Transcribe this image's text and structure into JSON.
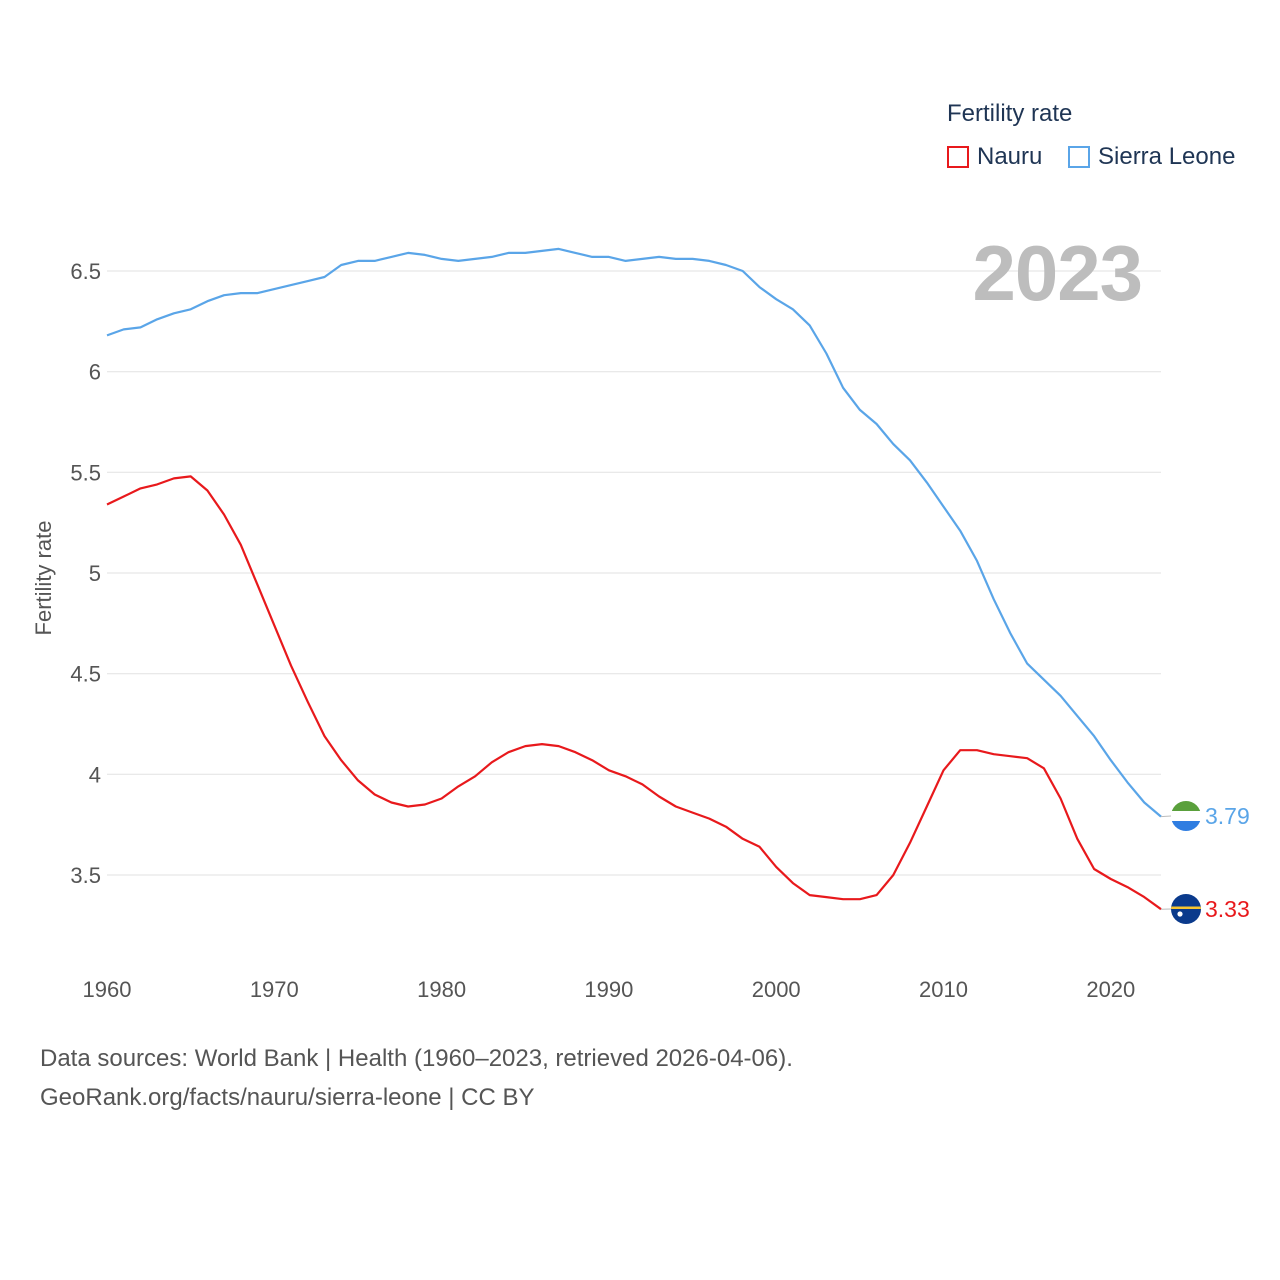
{
  "legend": {
    "title": "Fertility rate",
    "items": [
      {
        "label": "Nauru",
        "color": "#e8191c"
      },
      {
        "label": "Sierra Leone",
        "color": "#5aa5e8"
      }
    ]
  },
  "year_label": "2023",
  "footer": {
    "line1": "Data sources: World Bank | Health (1960–2023, retrieved 2026-04-06).",
    "line2": "GeoRank.org/facts/nauru/sierra-leone | CC BY"
  },
  "chart_data": {
    "type": "line",
    "title": "Fertility rate",
    "xlabel": "",
    "ylabel": "Fertility rate",
    "xlim": [
      1960,
      2023
    ],
    "ylim": [
      3.3,
      6.75
    ],
    "x_ticks": [
      1960,
      1970,
      1980,
      1990,
      2000,
      2010,
      2020
    ],
    "y_ticks": [
      3.5,
      4,
      4.5,
      5,
      5.5,
      6,
      6.5
    ],
    "y_tick_labels": [
      "3.5",
      "4",
      "4.5",
      "5",
      "5.5",
      "6",
      "6.5"
    ],
    "grid": true,
    "legend_position": "top-right",
    "x": [
      1960,
      1961,
      1962,
      1963,
      1964,
      1965,
      1966,
      1967,
      1968,
      1969,
      1970,
      1971,
      1972,
      1973,
      1974,
      1975,
      1976,
      1977,
      1978,
      1979,
      1980,
      1981,
      1982,
      1983,
      1984,
      1985,
      1986,
      1987,
      1988,
      1989,
      1990,
      1991,
      1992,
      1993,
      1994,
      1995,
      1996,
      1997,
      1998,
      1999,
      2000,
      2001,
      2002,
      2003,
      2004,
      2005,
      2006,
      2007,
      2008,
      2009,
      2010,
      2011,
      2012,
      2013,
      2014,
      2015,
      2016,
      2017,
      2018,
      2019,
      2020,
      2021,
      2022,
      2023
    ],
    "series": [
      {
        "name": "Nauru",
        "color": "#e8191c",
        "end_label": "3.33",
        "values": [
          5.34,
          5.38,
          5.42,
          5.44,
          5.47,
          5.48,
          5.41,
          5.29,
          5.14,
          4.94,
          4.74,
          4.54,
          4.36,
          4.19,
          4.07,
          3.97,
          3.9,
          3.86,
          3.84,
          3.85,
          3.88,
          3.94,
          3.99,
          4.06,
          4.11,
          4.14,
          4.15,
          4.14,
          4.11,
          4.07,
          4.02,
          3.99,
          3.95,
          3.89,
          3.84,
          3.81,
          3.78,
          3.74,
          3.68,
          3.64,
          3.54,
          3.46,
          3.4,
          3.39,
          3.38,
          3.38,
          3.4,
          3.5,
          3.66,
          3.84,
          4.02,
          4.12,
          4.12,
          4.1,
          4.09,
          4.08,
          4.03,
          3.88,
          3.68,
          3.53,
          3.48,
          3.44,
          3.39,
          3.33
        ]
      },
      {
        "name": "Sierra Leone",
        "color": "#5aa5e8",
        "end_label": "3.79",
        "values": [
          6.18,
          6.21,
          6.22,
          6.26,
          6.29,
          6.31,
          6.35,
          6.38,
          6.39,
          6.39,
          6.41,
          6.43,
          6.45,
          6.47,
          6.53,
          6.55,
          6.55,
          6.57,
          6.59,
          6.58,
          6.56,
          6.55,
          6.56,
          6.57,
          6.59,
          6.59,
          6.6,
          6.61,
          6.59,
          6.57,
          6.57,
          6.55,
          6.56,
          6.57,
          6.56,
          6.56,
          6.55,
          6.53,
          6.5,
          6.42,
          6.36,
          6.31,
          6.23,
          6.09,
          5.92,
          5.81,
          5.74,
          5.64,
          5.56,
          5.45,
          5.33,
          5.21,
          5.06,
          4.87,
          4.7,
          4.55,
          4.47,
          4.39,
          4.29,
          4.19,
          4.07,
          3.96,
          3.86,
          3.79
        ]
      }
    ]
  }
}
